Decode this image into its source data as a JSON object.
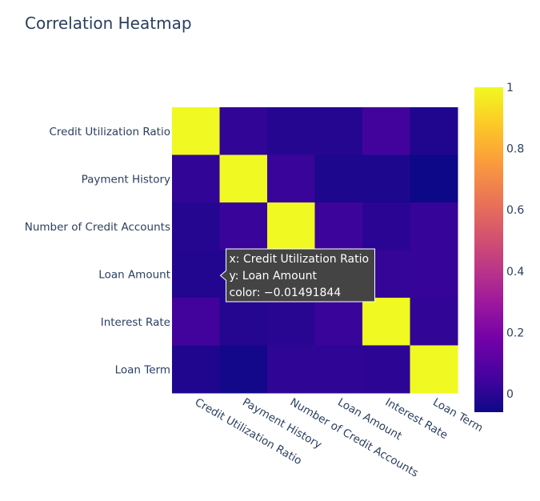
{
  "chart_data": {
    "type": "heatmap",
    "title": "Correlation Heatmap",
    "x_categories": [
      "Credit Utilization Ratio",
      "Payment History",
      "Number of Credit Accounts",
      "Loan Amount",
      "Interest Rate",
      "Loan Term"
    ],
    "y_categories": [
      "Credit Utilization Ratio",
      "Payment History",
      "Number of Credit Accounts",
      "Loan Amount",
      "Interest Rate",
      "Loan Term"
    ],
    "z": [
      [
        1.0,
        0.015,
        -0.01,
        -0.01,
        0.05,
        -0.02
      ],
      [
        0.015,
        1.0,
        0.03,
        -0.03,
        -0.03,
        -0.06
      ],
      [
        -0.01,
        0.03,
        1.0,
        0.04,
        0.0,
        0.025
      ],
      [
        -0.0149,
        -0.015,
        -0.01,
        1.0,
        0.02,
        0.025
      ],
      [
        0.05,
        -0.01,
        -0.005,
        0.03,
        1.0,
        0.015
      ],
      [
        -0.02,
        -0.05,
        0.01,
        0.01,
        0.005,
        1.0
      ]
    ],
    "colorscale": [
      "#0d0887",
      "#46039f",
      "#7201a8",
      "#9c179e",
      "#bd3786",
      "#d8576b",
      "#ed7953",
      "#fb9f3a",
      "#fdca26",
      "#f0f921"
    ],
    "colorbar": {
      "range": [
        -0.06,
        1.0
      ],
      "ticks": [
        "0",
        "0.2",
        "0.4",
        "0.6",
        "0.8",
        "1"
      ]
    },
    "hover": {
      "x_line": "x: Credit Utilization Ratio",
      "y_line": "y: Loan Amount",
      "color_line": "color: −0.01491844",
      "row": 3,
      "col": 0,
      "background": "#444444"
    }
  }
}
